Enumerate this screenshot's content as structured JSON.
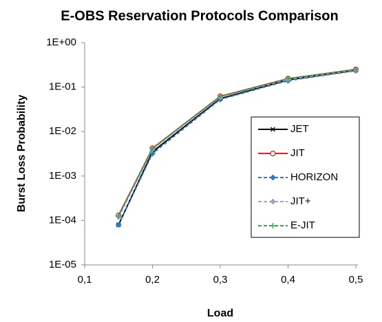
{
  "chart_data": {
    "type": "line",
    "title": "E-OBS  Reservation Protocols Comparison",
    "xlabel": "Load",
    "ylabel": "Burst Loss Probability",
    "x": [
      0.15,
      0.2,
      0.3,
      0.4,
      0.5
    ],
    "xlim": [
      0.1,
      0.5
    ],
    "xticks": [
      {
        "value": 0.1,
        "label": "0,1"
      },
      {
        "value": 0.2,
        "label": "0,2"
      },
      {
        "value": 0.3,
        "label": "0,3"
      },
      {
        "value": 0.4,
        "label": "0,4"
      },
      {
        "value": 0.5,
        "label": "0,5"
      }
    ],
    "ylim": [
      1e-05,
      1
    ],
    "yticks": [
      {
        "value": 1e-05,
        "label": "1E-05"
      },
      {
        "value": 0.0001,
        "label": "1E-04"
      },
      {
        "value": 0.001,
        "label": "1E-03"
      },
      {
        "value": 0.01,
        "label": "1E-02"
      },
      {
        "value": 0.1,
        "label": "1E-01"
      },
      {
        "value": 1,
        "label": "1E+00"
      }
    ],
    "log_y": true,
    "series": [
      {
        "name": "JET",
        "color": "#000000",
        "dashed": false,
        "marker": "star",
        "values": [
          8e-05,
          0.0035,
          0.055,
          0.145,
          0.24
        ]
      },
      {
        "name": "JIT",
        "color": "#e0201c",
        "dashed": false,
        "marker": "circle",
        "values": [
          0.00013,
          0.0042,
          0.062,
          0.155,
          0.25
        ]
      },
      {
        "name": "HORIZON",
        "color": "#2a78c8",
        "dashed": true,
        "marker": "diamond",
        "values": [
          8e-05,
          0.0032,
          0.053,
          0.14,
          0.235
        ]
      },
      {
        "name": "JIT+",
        "color": "#a99cc8",
        "dashed": true,
        "marker": "diamond",
        "values": [
          0.00012,
          0.004,
          0.06,
          0.15,
          0.245
        ]
      },
      {
        "name": "E-JIT",
        "color": "#2ea84a",
        "dashed": true,
        "marker": "plus",
        "values": [
          0.000125,
          0.0042,
          0.062,
          0.155,
          0.25
        ]
      }
    ]
  }
}
